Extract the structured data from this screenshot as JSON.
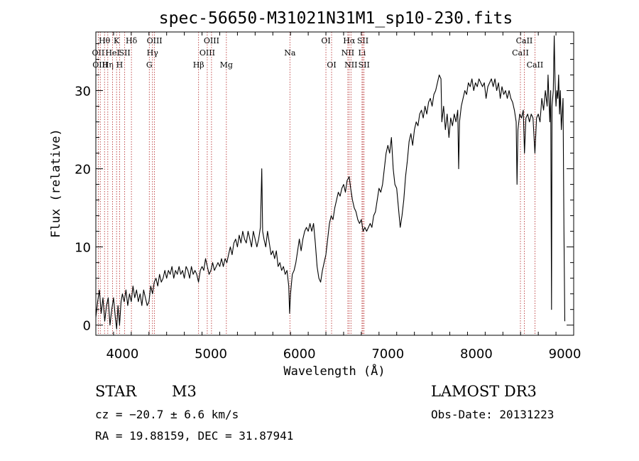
{
  "chart_data": {
    "type": "line",
    "title": "spec-56650-M31021N31M1_sp10-230.fits",
    "xlabel": "Wavelength (Å)",
    "ylabel": "Flux (relative)",
    "xlim": [
      3700,
      9100
    ],
    "ylim": [
      -1.3,
      37.5
    ],
    "xticks": [
      4000,
      5000,
      6000,
      7000,
      8000,
      9000
    ],
    "xminor_step": 200,
    "yticks": [
      0,
      10,
      20,
      30
    ],
    "yminor_step": 2,
    "line_color": "#000000",
    "marker_color": "#b22222",
    "series": [
      {
        "name": "flux",
        "points": [
          [
            3700,
            1
          ],
          [
            3720,
            3
          ],
          [
            3740,
            4.5
          ],
          [
            3760,
            1.5
          ],
          [
            3780,
            3.5
          ],
          [
            3800,
            0.5
          ],
          [
            3820,
            2.5
          ],
          [
            3840,
            3.5
          ],
          [
            3860,
            0
          ],
          [
            3880,
            2
          ],
          [
            3900,
            3.5
          ],
          [
            3920,
            1
          ],
          [
            3935,
            -0.5
          ],
          [
            3950,
            2.5
          ],
          [
            3968,
            0
          ],
          [
            3985,
            3
          ],
          [
            4000,
            4
          ],
          [
            4020,
            3
          ],
          [
            4040,
            4.5
          ],
          [
            4060,
            2.5
          ],
          [
            4080,
            4
          ],
          [
            4100,
            3
          ],
          [
            4120,
            5
          ],
          [
            4140,
            3.5
          ],
          [
            4160,
            4.5
          ],
          [
            4180,
            3
          ],
          [
            4200,
            4
          ],
          [
            4220,
            2.5
          ],
          [
            4240,
            4.5
          ],
          [
            4260,
            3.5
          ],
          [
            4280,
            2.5
          ],
          [
            4300,
            3
          ],
          [
            4320,
            5
          ],
          [
            4340,
            4
          ],
          [
            4360,
            5.5
          ],
          [
            4380,
            6
          ],
          [
            4400,
            5
          ],
          [
            4420,
            6.5
          ],
          [
            4440,
            5.5
          ],
          [
            4460,
            6
          ],
          [
            4480,
            7
          ],
          [
            4500,
            6
          ],
          [
            4520,
            7
          ],
          [
            4540,
            6.5
          ],
          [
            4560,
            7.5
          ],
          [
            4580,
            6
          ],
          [
            4600,
            7
          ],
          [
            4620,
            6.5
          ],
          [
            4640,
            7.5
          ],
          [
            4660,
            6.5
          ],
          [
            4680,
            7
          ],
          [
            4700,
            6
          ],
          [
            4720,
            7.5
          ],
          [
            4740,
            7
          ],
          [
            4760,
            6
          ],
          [
            4780,
            7.5
          ],
          [
            4800,
            6.5
          ],
          [
            4820,
            7
          ],
          [
            4840,
            6.5
          ],
          [
            4860,
            5.5
          ],
          [
            4880,
            7
          ],
          [
            4900,
            7.5
          ],
          [
            4920,
            7
          ],
          [
            4940,
            8.5
          ],
          [
            4960,
            7.5
          ],
          [
            4980,
            6.5
          ],
          [
            5000,
            7
          ],
          [
            5020,
            8
          ],
          [
            5040,
            7
          ],
          [
            5060,
            7.5
          ],
          [
            5080,
            8
          ],
          [
            5100,
            7.5
          ],
          [
            5120,
            8.5
          ],
          [
            5140,
            7.5
          ],
          [
            5160,
            8.5
          ],
          [
            5180,
            8
          ],
          [
            5200,
            9
          ],
          [
            5220,
            10
          ],
          [
            5240,
            9
          ],
          [
            5260,
            10.5
          ],
          [
            5280,
            11
          ],
          [
            5300,
            10
          ],
          [
            5320,
            11.5
          ],
          [
            5340,
            10.5
          ],
          [
            5360,
            12
          ],
          [
            5380,
            11
          ],
          [
            5400,
            10.5
          ],
          [
            5420,
            12
          ],
          [
            5440,
            11
          ],
          [
            5460,
            10
          ],
          [
            5480,
            12
          ],
          [
            5500,
            11
          ],
          [
            5520,
            10
          ],
          [
            5540,
            11
          ],
          [
            5560,
            12.5
          ],
          [
            5575,
            20
          ],
          [
            5585,
            12
          ],
          [
            5600,
            11
          ],
          [
            5620,
            10
          ],
          [
            5640,
            12
          ],
          [
            5660,
            10.5
          ],
          [
            5680,
            9
          ],
          [
            5700,
            9.5
          ],
          [
            5720,
            8.5
          ],
          [
            5740,
            9.5
          ],
          [
            5760,
            7.5
          ],
          [
            5780,
            8
          ],
          [
            5800,
            7
          ],
          [
            5820,
            7.5
          ],
          [
            5840,
            6.5
          ],
          [
            5860,
            7
          ],
          [
            5880,
            5
          ],
          [
            5890,
            1.5
          ],
          [
            5900,
            4
          ],
          [
            5920,
            6.5
          ],
          [
            5940,
            7
          ],
          [
            5960,
            8
          ],
          [
            5980,
            9.5
          ],
          [
            6000,
            11
          ],
          [
            6020,
            9.5
          ],
          [
            6040,
            11
          ],
          [
            6060,
            12
          ],
          [
            6080,
            12.5
          ],
          [
            6100,
            12
          ],
          [
            6120,
            13
          ],
          [
            6140,
            12
          ],
          [
            6160,
            13
          ],
          [
            6180,
            10.5
          ],
          [
            6200,
            7.5
          ],
          [
            6220,
            6
          ],
          [
            6240,
            5.5
          ],
          [
            6260,
            7
          ],
          [
            6280,
            8
          ],
          [
            6300,
            9
          ],
          [
            6320,
            11
          ],
          [
            6340,
            13
          ],
          [
            6360,
            14
          ],
          [
            6380,
            13.5
          ],
          [
            6400,
            15
          ],
          [
            6420,
            16
          ],
          [
            6440,
            17
          ],
          [
            6460,
            16.5
          ],
          [
            6480,
            17.5
          ],
          [
            6500,
            18
          ],
          [
            6520,
            17
          ],
          [
            6540,
            18.5
          ],
          [
            6563,
            19
          ],
          [
            6580,
            17.5
          ],
          [
            6600,
            16
          ],
          [
            6620,
            15
          ],
          [
            6640,
            14.5
          ],
          [
            6660,
            13.5
          ],
          [
            6680,
            13
          ],
          [
            6700,
            13.5
          ],
          [
            6720,
            12
          ],
          [
            6740,
            12.5
          ],
          [
            6760,
            12
          ],
          [
            6780,
            12.5
          ],
          [
            6800,
            13
          ],
          [
            6820,
            12.5
          ],
          [
            6840,
            14
          ],
          [
            6860,
            14.5
          ],
          [
            6880,
            16
          ],
          [
            6900,
            17.5
          ],
          [
            6920,
            17
          ],
          [
            6940,
            18
          ],
          [
            6960,
            20
          ],
          [
            6980,
            22
          ],
          [
            7000,
            23
          ],
          [
            7020,
            22
          ],
          [
            7040,
            24
          ],
          [
            7060,
            20
          ],
          [
            7080,
            18
          ],
          [
            7100,
            17.5
          ],
          [
            7120,
            15
          ],
          [
            7140,
            12.5
          ],
          [
            7160,
            14
          ],
          [
            7180,
            16
          ],
          [
            7200,
            19
          ],
          [
            7220,
            21
          ],
          [
            7240,
            23.5
          ],
          [
            7260,
            24.5
          ],
          [
            7280,
            23
          ],
          [
            7300,
            25
          ],
          [
            7320,
            26
          ],
          [
            7340,
            25.5
          ],
          [
            7360,
            27
          ],
          [
            7380,
            27.5
          ],
          [
            7400,
            26.5
          ],
          [
            7420,
            28
          ],
          [
            7440,
            27
          ],
          [
            7460,
            28.5
          ],
          [
            7480,
            29
          ],
          [
            7500,
            28
          ],
          [
            7520,
            29.5
          ],
          [
            7540,
            30
          ],
          [
            7560,
            31
          ],
          [
            7580,
            32
          ],
          [
            7600,
            31.5
          ],
          [
            7610,
            26
          ],
          [
            7630,
            28
          ],
          [
            7650,
            25
          ],
          [
            7670,
            27
          ],
          [
            7690,
            24
          ],
          [
            7710,
            26.5
          ],
          [
            7730,
            25.5
          ],
          [
            7750,
            27
          ],
          [
            7770,
            26
          ],
          [
            7790,
            27.5
          ],
          [
            7800,
            20
          ],
          [
            7810,
            26
          ],
          [
            7830,
            28
          ],
          [
            7850,
            29
          ],
          [
            7870,
            30
          ],
          [
            7890,
            29.5
          ],
          [
            7910,
            31
          ],
          [
            7930,
            30.5
          ],
          [
            7950,
            31.5
          ],
          [
            7970,
            30
          ],
          [
            7990,
            31
          ],
          [
            8010,
            30.5
          ],
          [
            8030,
            31.5
          ],
          [
            8050,
            31
          ],
          [
            8070,
            30.5
          ],
          [
            8090,
            31
          ],
          [
            8110,
            29
          ],
          [
            8130,
            30.5
          ],
          [
            8150,
            31
          ],
          [
            8170,
            31.5
          ],
          [
            8190,
            30.5
          ],
          [
            8210,
            31.5
          ],
          [
            8230,
            30
          ],
          [
            8250,
            31
          ],
          [
            8270,
            29
          ],
          [
            8290,
            30.5
          ],
          [
            8310,
            29.5
          ],
          [
            8330,
            30
          ],
          [
            8350,
            29
          ],
          [
            8370,
            30
          ],
          [
            8390,
            29
          ],
          [
            8410,
            28.5
          ],
          [
            8430,
            27.5
          ],
          [
            8450,
            26
          ],
          [
            8460,
            18
          ],
          [
            8470,
            25
          ],
          [
            8490,
            27
          ],
          [
            8510,
            26.5
          ],
          [
            8530,
            27.5
          ],
          [
            8544,
            22
          ],
          [
            8560,
            26.5
          ],
          [
            8580,
            27
          ],
          [
            8600,
            26
          ],
          [
            8620,
            27
          ],
          [
            8640,
            26.5
          ],
          [
            8662,
            22
          ],
          [
            8680,
            26.5
          ],
          [
            8700,
            27
          ],
          [
            8720,
            26
          ],
          [
            8740,
            29
          ],
          [
            8760,
            27.5
          ],
          [
            8780,
            30
          ],
          [
            8800,
            28
          ],
          [
            8810,
            32
          ],
          [
            8820,
            29
          ],
          [
            8830,
            26
          ],
          [
            8840,
            30
          ],
          [
            8850,
            2
          ],
          [
            8855,
            28
          ],
          [
            8870,
            30
          ],
          [
            8880,
            37
          ],
          [
            8890,
            31
          ],
          [
            8900,
            28
          ],
          [
            8910,
            30
          ],
          [
            8920,
            29
          ],
          [
            8930,
            32
          ],
          [
            8940,
            27
          ],
          [
            8950,
            30
          ],
          [
            8960,
            25
          ],
          [
            8980,
            29
          ],
          [
            8990,
            12
          ],
          [
            9000,
            0.5
          ]
        ]
      }
    ],
    "markers": [
      {
        "wave": 3727,
        "label": "OII",
        "row": 2
      },
      {
        "wave": 3750,
        "label": "OIII",
        "row": 3
      },
      {
        "wave": 3798,
        "label": "Hθ",
        "row": 1
      },
      {
        "wave": 3835,
        "label": "Hη",
        "row": 3
      },
      {
        "wave": 3889,
        "label": "HeI",
        "row": 2
      },
      {
        "wave": 3934,
        "label": "K",
        "row": 1
      },
      {
        "wave": 3968,
        "label": "H",
        "row": 3
      },
      {
        "wave": 4026,
        "label": "SII",
        "row": 2
      },
      {
        "wave": 4102,
        "label": "Hδ",
        "row": 1
      },
      {
        "wave": 4304,
        "label": "G",
        "row": 3
      },
      {
        "wave": 4340,
        "label": "Hγ",
        "row": 2
      },
      {
        "wave": 4363,
        "label": "OIII",
        "row": 1
      },
      {
        "wave": 4861,
        "label": "Hβ",
        "row": 3
      },
      {
        "wave": 4959,
        "label": "OIII",
        "row": 2
      },
      {
        "wave": 5007,
        "label": "OIII",
        "row": 1
      },
      {
        "wave": 5175,
        "label": "Mg",
        "row": 3
      },
      {
        "wave": 5893,
        "label": "Na",
        "row": 2
      },
      {
        "wave": 6300,
        "label": "OI",
        "row": 1
      },
      {
        "wave": 6364,
        "label": "OI",
        "row": 3
      },
      {
        "wave": 6548,
        "label": "NII",
        "row": 2
      },
      {
        "wave": 6563,
        "label": "Hα",
        "row": 1
      },
      {
        "wave": 6583,
        "label": "NII",
        "row": 3
      },
      {
        "wave": 6708,
        "label": "Li",
        "row": 2
      },
      {
        "wave": 6717,
        "label": "SII",
        "row": 1
      },
      {
        "wave": 6731,
        "label": "SII",
        "row": 3
      },
      {
        "wave": 8498,
        "label": "CaII",
        "row": 2
      },
      {
        "wave": 8542,
        "label": "CaII",
        "row": 1
      },
      {
        "wave": 8662,
        "label": "CaII",
        "row": 3
      }
    ]
  },
  "info": {
    "obj_class": "STAR",
    "subclass": "M3",
    "survey": "LAMOST DR3",
    "cz": "cz = −20.7 ± 6.6 km/s",
    "obs_date": "Obs-Date: 20131223",
    "coords": "RA =  19.88159, DEC =  31.87941"
  }
}
